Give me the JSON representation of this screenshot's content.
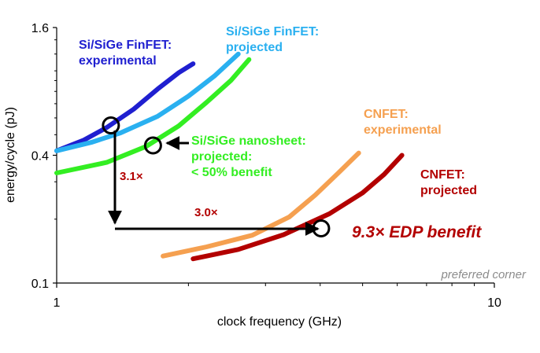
{
  "chart_data": {
    "type": "line",
    "xlabel": "clock frequency (GHz)",
    "ylabel": "energy/cycle (pJ)",
    "x_scale": "log",
    "y_scale": "log",
    "xlim": [
      1,
      10
    ],
    "ylim": [
      0.1,
      1.6
    ],
    "x_ticks": [
      "1",
      "10"
    ],
    "y_ticks": [
      "0.1",
      "0.4",
      "1.6"
    ],
    "grid": false,
    "series": [
      {
        "name": "Si/SiGe FinFET: experimental",
        "label_lines": [
          "Si/SiGe FinFET:",
          "experimental"
        ],
        "color": "#1f1fd0",
        "x": [
          1.0,
          1.15,
          1.3,
          1.5,
          1.7,
          1.9,
          2.05
        ],
        "y": [
          0.42,
          0.47,
          0.54,
          0.66,
          0.82,
          0.98,
          1.08
        ]
      },
      {
        "name": "Si/SiGe FinFET: projected",
        "label_lines": [
          "Si/SiGe FinFET:",
          "projected"
        ],
        "color": "#2ab0f0",
        "x": [
          1.0,
          1.2,
          1.4,
          1.7,
          2.0,
          2.3,
          2.6
        ],
        "y": [
          0.42,
          0.46,
          0.51,
          0.61,
          0.76,
          0.95,
          1.2
        ]
      },
      {
        "name": "Si/SiGe nanosheet: projected: < 50% benefit",
        "label_lines": [
          "Si/SiGe nanosheet:",
          "projected:",
          "< 50% benefit"
        ],
        "color": "#33ee22",
        "x": [
          1.0,
          1.3,
          1.6,
          1.9,
          2.2,
          2.5,
          2.75
        ],
        "y": [
          0.33,
          0.37,
          0.44,
          0.55,
          0.71,
          0.9,
          1.13
        ]
      },
      {
        "name": "CNFET: experimental",
        "label_lines": [
          "CNFET:",
          "experimental"
        ],
        "color": "#f5a050",
        "x": [
          1.75,
          2.2,
          2.8,
          3.4,
          3.9,
          4.4,
          4.9
        ],
        "y": [
          0.134,
          0.148,
          0.168,
          0.205,
          0.26,
          0.33,
          0.41
        ]
      },
      {
        "name": "CNFET: projected",
        "label_lines": [
          "CNFET:",
          "projected"
        ],
        "color": "#b30000",
        "x": [
          2.05,
          2.6,
          3.3,
          4.2,
          5.0,
          5.6,
          6.15
        ],
        "y": [
          0.13,
          0.144,
          0.169,
          0.212,
          0.266,
          0.325,
          0.4
        ]
      }
    ],
    "markers": [
      {
        "x": 1.33,
        "y": 0.553,
        "label": ""
      },
      {
        "x": 1.66,
        "y": 0.445,
        "label": ""
      },
      {
        "x": 4.02,
        "y": 0.181,
        "label": ""
      }
    ],
    "annotations": {
      "vertical_factor": "3.1×",
      "horizontal_factor": "3.0×",
      "edp_benefit": "9.3× EDP benefit",
      "preferred_corner": "preferred corner"
    }
  }
}
